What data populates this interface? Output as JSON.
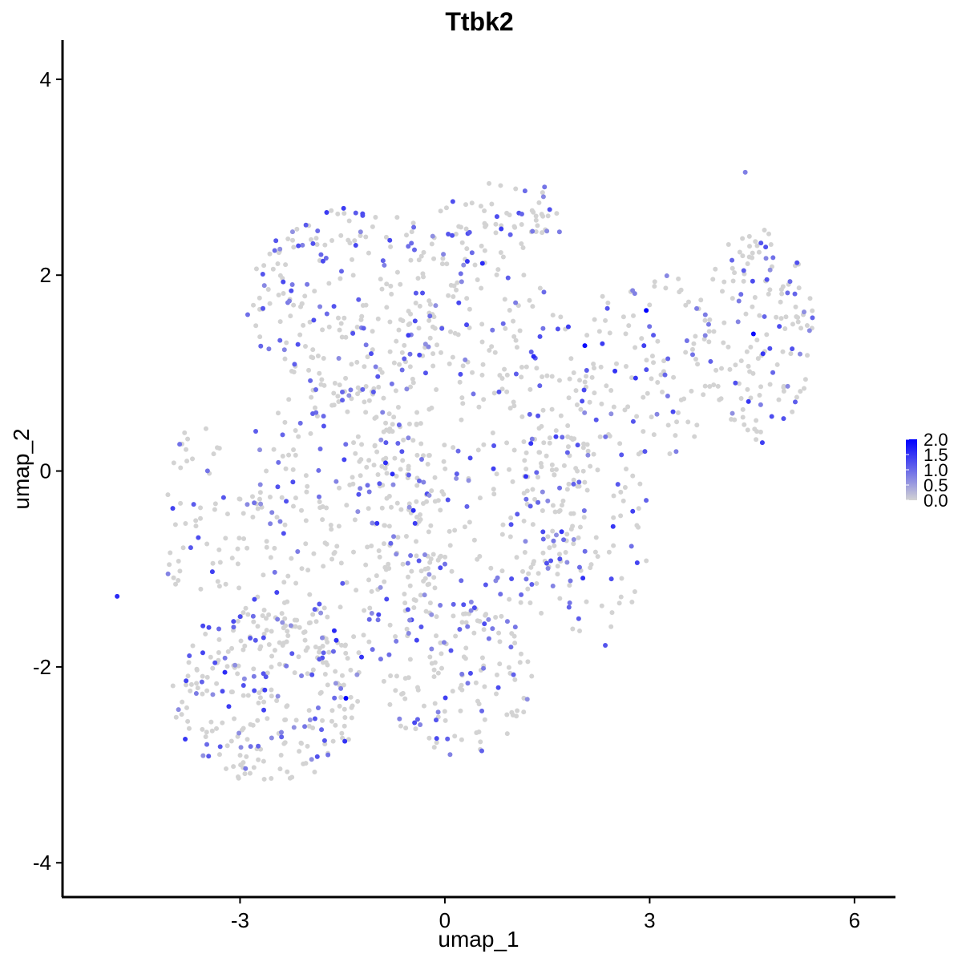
{
  "chart_data": {
    "type": "scatter",
    "title": "Ttbk2",
    "xlabel": "umap_1",
    "ylabel": "umap_2",
    "xlim": [
      -5.6,
      6.6
    ],
    "ylim": [
      -4.35,
      4.4
    ],
    "xticks": [
      -3,
      0,
      3,
      6
    ],
    "yticks": [
      -4,
      -2,
      0,
      2,
      4
    ],
    "xtick_labels": [
      "-3",
      "0",
      "3",
      "6"
    ],
    "ytick_labels": [
      "-4",
      "-2",
      "0",
      "2",
      "4"
    ],
    "grid": false,
    "legend": {
      "placement": "right",
      "type": "colorbar",
      "min": 0,
      "max": 2.0,
      "labels": [
        "2.0",
        "1.5",
        "1.0",
        "0.5",
        "0.0"
      ],
      "low_color": "#d3d3d3",
      "high_color": "#0000ff"
    },
    "color_scale": {
      "low": "#d3d3d3",
      "high": "#0000ff"
    },
    "points_note_estimated": true,
    "highlight_points": [
      {
        "x": -4.8,
        "y": -1.28,
        "v": 1.6
      },
      {
        "x": 2.95,
        "y": 1.64,
        "v": 2.0
      },
      {
        "x": 2.05,
        "y": 1.28,
        "v": 1.9
      },
      {
        "x": 4.52,
        "y": 1.4,
        "v": 1.9
      },
      {
        "x": -1.45,
        "y": -2.32,
        "v": 2.0
      },
      {
        "x": -1.62,
        "y": -1.63,
        "v": 1.6
      },
      {
        "x": -1.22,
        "y": -1.9,
        "v": 1.5
      },
      {
        "x": 1.3,
        "y": 1.17,
        "v": 1.6
      },
      {
        "x": 2.93,
        "y": 0.2,
        "v": 1.2
      },
      {
        "x": 4.65,
        "y": 0.29,
        "v": 1.4
      },
      {
        "x": 2.38,
        "y": 1.66,
        "v": 1.2
      },
      {
        "x": 2.35,
        "y": -1.78,
        "v": 1.2
      },
      {
        "x": -0.12,
        "y": -2.73,
        "v": 1.3
      },
      {
        "x": 1.46,
        "y": 2.9,
        "v": 0.9
      },
      {
        "x": 4.4,
        "y": 3.05,
        "v": 0.8
      }
    ],
    "regions": [
      {
        "cx": -2.6,
        "cy": -2.3,
        "rx": 1.4,
        "ry": 0.9,
        "n": 260
      },
      {
        "cx": -1.6,
        "cy": -0.6,
        "rx": 1.6,
        "ry": 1.5,
        "n": 300
      },
      {
        "cx": -1.3,
        "cy": 1.7,
        "rx": 1.6,
        "ry": 1.0,
        "n": 240
      },
      {
        "cx": 0.5,
        "cy": 0.3,
        "rx": 1.7,
        "ry": 1.9,
        "n": 320
      },
      {
        "cx": 0.2,
        "cy": -2.1,
        "rx": 1.1,
        "ry": 0.8,
        "n": 140
      },
      {
        "cx": 2.0,
        "cy": -0.6,
        "rx": 1.0,
        "ry": 1.1,
        "n": 120
      },
      {
        "cx": 3.0,
        "cy": 1.1,
        "rx": 1.0,
        "ry": 1.0,
        "n": 110
      },
      {
        "cx": 4.6,
        "cy": 1.4,
        "rx": 0.8,
        "ry": 1.1,
        "n": 150
      },
      {
        "cx": 0.8,
        "cy": 2.5,
        "rx": 1.0,
        "ry": 0.45,
        "n": 70
      },
      {
        "cx": -3.6,
        "cy": -0.6,
        "rx": 0.5,
        "ry": 1.1,
        "n": 50
      }
    ]
  }
}
